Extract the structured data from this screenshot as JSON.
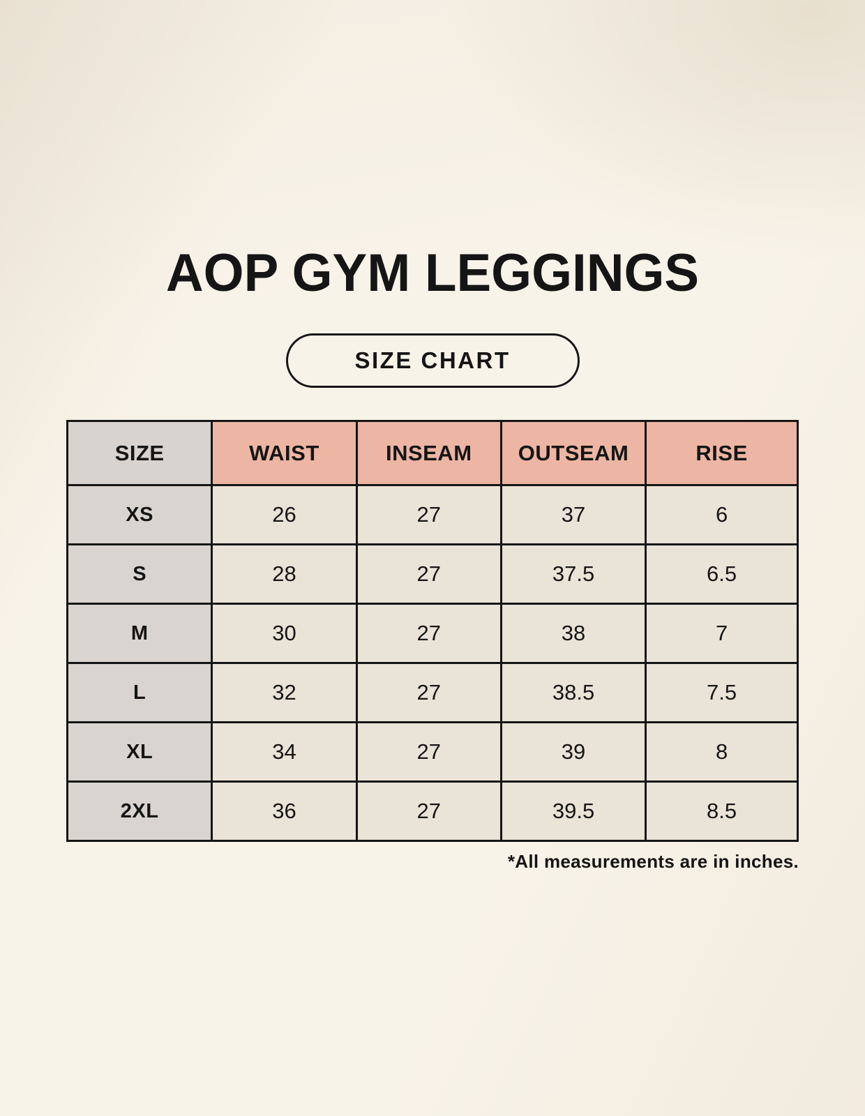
{
  "page": {
    "title": "AOP GYM LEGGINGS",
    "badge_label": "SIZE CHART",
    "footnote": "*All measurements are in inches."
  },
  "chart_data": {
    "type": "table",
    "title": "AOP GYM LEGGINGS",
    "columns": [
      "SIZE",
      "WAIST",
      "INSEAM",
      "OUTSEAM",
      "RISE"
    ],
    "rows": [
      [
        "XS",
        "26",
        "27",
        "37",
        "6"
      ],
      [
        "S",
        "28",
        "27",
        "37.5",
        "6.5"
      ],
      [
        "M",
        "30",
        "27",
        "38",
        "7"
      ],
      [
        "L",
        "32",
        "27",
        "38.5",
        "7.5"
      ],
      [
        "XL",
        "34",
        "27",
        "39",
        "8"
      ],
      [
        "2XL",
        "36",
        "27",
        "39.5",
        "8.5"
      ]
    ],
    "note": "*All measurements are in inches.",
    "units": "inches"
  },
  "colors": {
    "background": "#f8f3e9",
    "header_accent": "#edb5a3",
    "header_neutral": "#d9d3cf",
    "row_label_bg": "#dad4d0",
    "cell_bg": "#eae3d7",
    "border": "#151515",
    "text": "#151515"
  }
}
